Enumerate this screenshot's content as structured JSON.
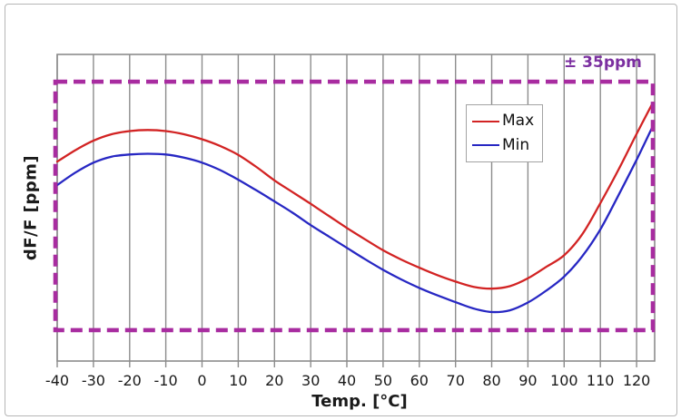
{
  "figure": {
    "background": "#ffffff",
    "border_color": "#b5b5b5"
  },
  "chart_data": {
    "type": "line",
    "title": "",
    "xlabel": "Temp. [°C]",
    "ylabel": "dF/F [ppm]",
    "x_ticks": [
      -40,
      -30,
      -20,
      -10,
      0,
      10,
      20,
      30,
      40,
      50,
      60,
      70,
      80,
      90,
      100,
      110,
      120
    ],
    "xlim": [
      -40,
      125
    ],
    "ylim": [
      -43.7,
      42.7
    ],
    "grid": "vertical-only",
    "grid_color": "#8c8c8c",
    "axis_color": "#8c8c8c",
    "legend_position": "upper-right-inside",
    "annotation": {
      "text": "± 35ppm",
      "color": "#7b2fa0"
    },
    "tolerance_band": {
      "ppm": 35,
      "color": "#a82ca0",
      "style": "dashed"
    },
    "x": [
      -40,
      -35,
      -30,
      -25,
      -20,
      -15,
      -10,
      -5,
      0,
      5,
      10,
      15,
      20,
      25,
      30,
      35,
      40,
      45,
      50,
      55,
      60,
      65,
      70,
      75,
      80,
      85,
      90,
      95,
      100,
      105,
      110,
      115,
      120,
      125
    ],
    "series": [
      {
        "name": "Max",
        "color": "#d22323",
        "values": [
          12.5,
          15.7,
          18.4,
          20.2,
          21.1,
          21.4,
          21.1,
          20.2,
          18.8,
          16.9,
          14.4,
          11.0,
          7.2,
          3.9,
          0.6,
          -2.8,
          -6.2,
          -9.4,
          -12.5,
          -15.1,
          -17.4,
          -19.5,
          -21.3,
          -22.8,
          -23.3,
          -22.6,
          -20.4,
          -17.2,
          -13.9,
          -8.0,
          0.8,
          10.2,
          20.3,
          29.1
        ]
      },
      {
        "name": "Min",
        "color": "#2727c3",
        "values": [
          5.9,
          9.4,
          12.2,
          13.9,
          14.5,
          14.7,
          14.5,
          13.6,
          12.2,
          10.1,
          7.4,
          4.4,
          1.3,
          -1.9,
          -5.4,
          -8.6,
          -11.8,
          -15.0,
          -18.0,
          -20.7,
          -23.1,
          -25.2,
          -27.1,
          -28.9,
          -29.9,
          -29.4,
          -27.2,
          -23.9,
          -19.9,
          -14.2,
          -6.6,
          3.0,
          13.0,
          22.5
        ]
      }
    ]
  }
}
